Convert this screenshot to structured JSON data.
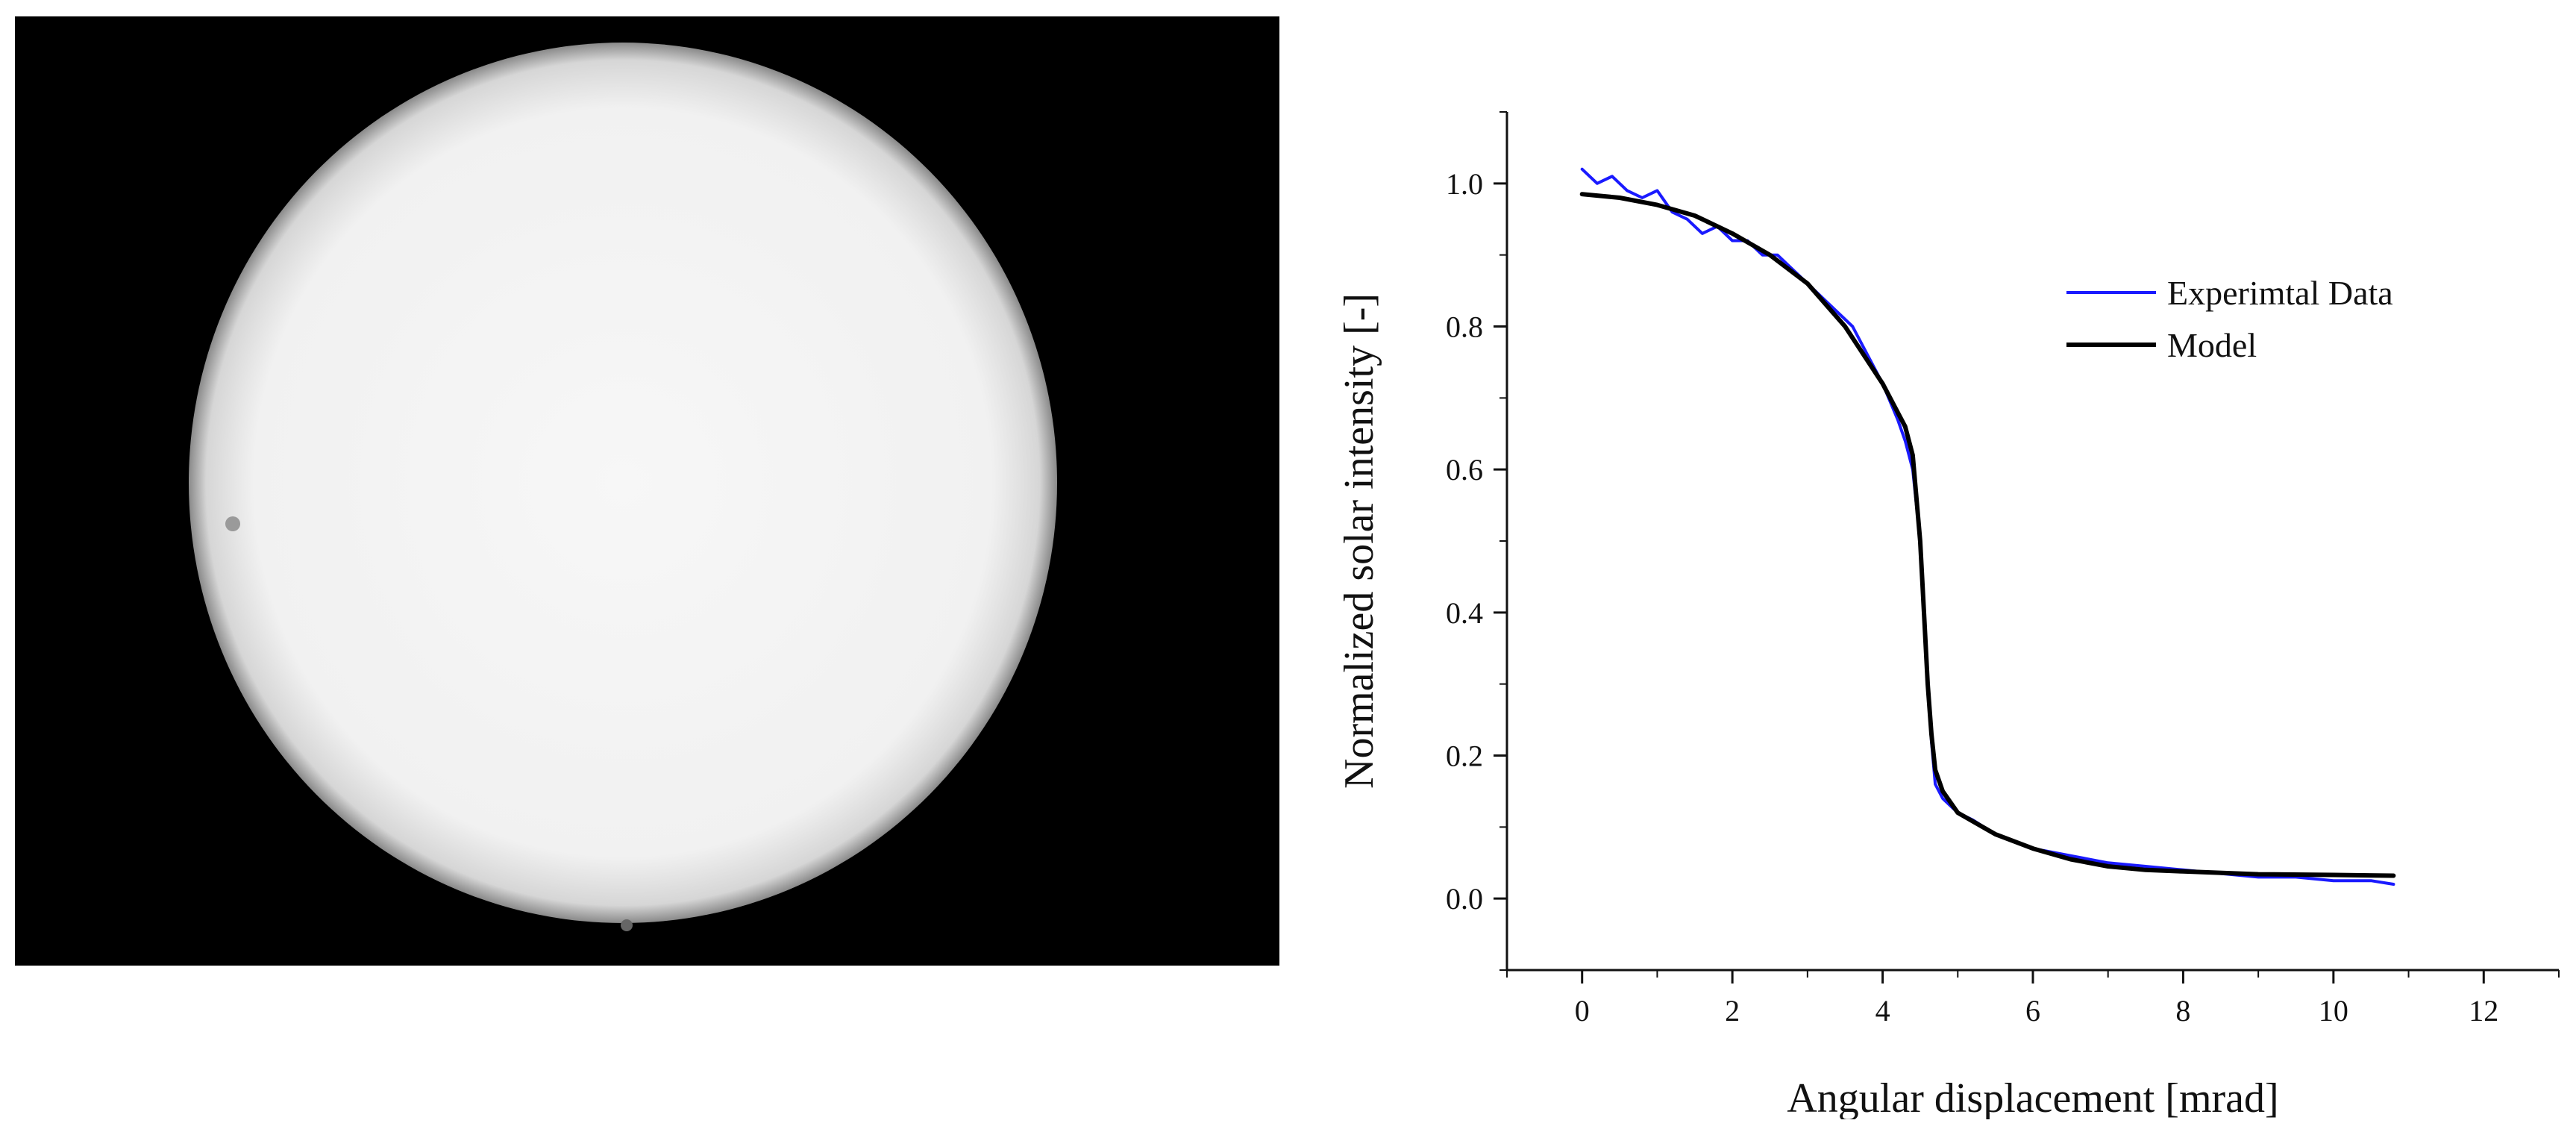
{
  "figure": {
    "left_panel": {
      "subject": "solar-disk-photograph",
      "background_color": "#000000",
      "disk_color": "#f2f2f2"
    }
  },
  "chart_data": {
    "type": "line",
    "title": "",
    "xlabel": "Angular displacement [mrad]",
    "ylabel": "Normalized solar intensity [-]",
    "xlim": [
      -1,
      13
    ],
    "ylim": [
      -0.1,
      1.1
    ],
    "xticks": [
      0,
      2,
      4,
      6,
      8,
      10,
      12
    ],
    "yticks": [
      0.0,
      0.2,
      0.4,
      0.6,
      0.8,
      1.0
    ],
    "xtick_labels": [
      "0",
      "2",
      "4",
      "6",
      "8",
      "10",
      "12"
    ],
    "ytick_labels": [
      "0.0",
      "0.2",
      "0.4",
      "0.6",
      "0.8",
      "1.0"
    ],
    "grid": false,
    "legend_position": "upper-right",
    "series": [
      {
        "name": "Experimtal Data",
        "color": "#1a1aff",
        "x": [
          0.0,
          0.2,
          0.4,
          0.6,
          0.8,
          1.0,
          1.2,
          1.4,
          1.6,
          1.8,
          2.0,
          2.2,
          2.4,
          2.6,
          2.8,
          3.0,
          3.2,
          3.4,
          3.6,
          3.8,
          4.0,
          4.2,
          4.3,
          4.4,
          4.5,
          4.55,
          4.6,
          4.65,
          4.7,
          4.8,
          5.0,
          5.2,
          5.5,
          6.0,
          6.5,
          7.0,
          7.5,
          8.0,
          8.5,
          9.0,
          9.5,
          10.0,
          10.5,
          10.8
        ],
        "y": [
          1.02,
          1.0,
          1.01,
          0.99,
          0.98,
          0.99,
          0.96,
          0.95,
          0.93,
          0.94,
          0.92,
          0.92,
          0.9,
          0.9,
          0.88,
          0.86,
          0.84,
          0.82,
          0.8,
          0.76,
          0.72,
          0.67,
          0.64,
          0.6,
          0.5,
          0.4,
          0.3,
          0.22,
          0.16,
          0.14,
          0.12,
          0.11,
          0.09,
          0.07,
          0.06,
          0.05,
          0.045,
          0.04,
          0.035,
          0.03,
          0.03,
          0.025,
          0.025,
          0.02
        ]
      },
      {
        "name": "Model",
        "color": "#000000",
        "x": [
          0.0,
          0.5,
          1.0,
          1.5,
          2.0,
          2.5,
          3.0,
          3.5,
          4.0,
          4.3,
          4.4,
          4.5,
          4.55,
          4.6,
          4.65,
          4.7,
          4.8,
          5.0,
          5.5,
          6.0,
          6.5,
          7.0,
          7.5,
          8.0,
          9.0,
          10.0,
          10.8
        ],
        "y": [
          0.985,
          0.98,
          0.97,
          0.955,
          0.93,
          0.9,
          0.86,
          0.8,
          0.72,
          0.66,
          0.62,
          0.5,
          0.4,
          0.3,
          0.23,
          0.18,
          0.15,
          0.12,
          0.09,
          0.07,
          0.055,
          0.045,
          0.04,
          0.038,
          0.034,
          0.033,
          0.032
        ]
      }
    ]
  }
}
